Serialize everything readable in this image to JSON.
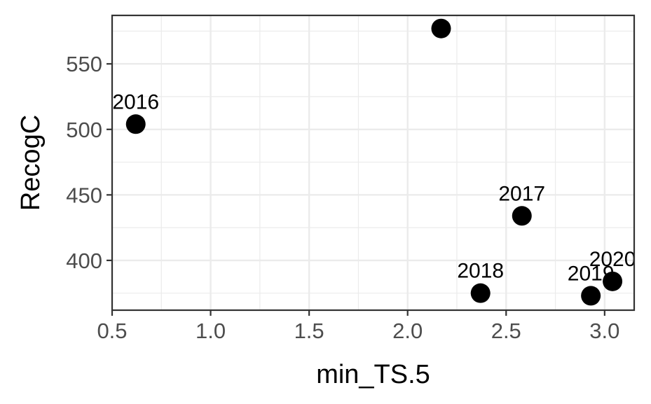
{
  "chart_data": {
    "type": "scatter",
    "xlabel": "min_TS.5",
    "ylabel": "RecogC",
    "xlim": [
      0.5,
      3.15
    ],
    "ylim": [
      362,
      587
    ],
    "x_ticks": [
      0.5,
      1.0,
      1.5,
      2.0,
      2.5,
      3.0
    ],
    "x_tick_labels": [
      "0.5",
      "1.0",
      "1.5",
      "2.0",
      "2.5",
      "3.0"
    ],
    "y_ticks": [
      400,
      450,
      500,
      550
    ],
    "y_tick_labels": [
      "400",
      "450",
      "500",
      "550"
    ],
    "grid": true,
    "legend": "none",
    "point_color": "#000000",
    "points": [
      {
        "x": 0.62,
        "y": 504,
        "label": "2016"
      },
      {
        "x": 2.17,
        "y": 577,
        "label": ""
      },
      {
        "x": 2.58,
        "y": 434,
        "label": "2017"
      },
      {
        "x": 2.37,
        "y": 375,
        "label": "2018"
      },
      {
        "x": 2.93,
        "y": 373,
        "label": "2019"
      },
      {
        "x": 3.04,
        "y": 384,
        "label": "2020"
      }
    ]
  }
}
